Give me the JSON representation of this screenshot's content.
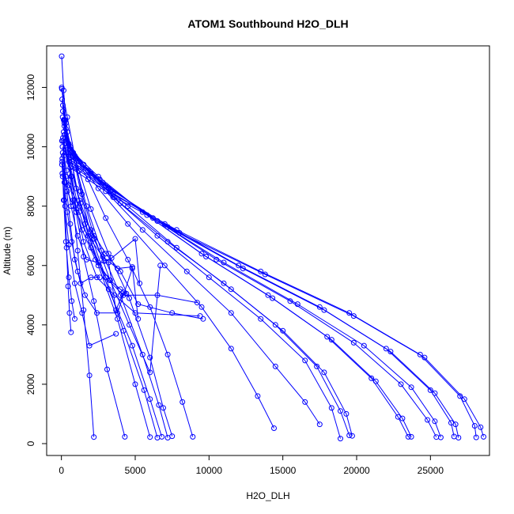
{
  "chart_data": {
    "type": "line",
    "title": "ATOM1 Southbound H2O_DLH",
    "xlabel": "H2O_DLH",
    "ylabel": "Altitude (m)",
    "xlim": [
      -1000,
      29000
    ],
    "ylim": [
      -400,
      13400
    ],
    "xticks": [
      0,
      5000,
      10000,
      15000,
      20000,
      25000
    ],
    "yticks": [
      0,
      2000,
      4000,
      6000,
      8000,
      10000,
      12000
    ],
    "grid": false,
    "series_color": "#0000ff",
    "marker": "open-circle",
    "series": [
      {
        "x": [
          20,
          150,
          300,
          500,
          800,
          1100,
          1500,
          1900,
          2200
        ],
        "y": [
          13050,
          11900,
          10800,
          9500,
          8000,
          6500,
          4500,
          2300,
          220
        ]
      },
      {
        "x": [
          50,
          200,
          400,
          650,
          1000,
          1500,
          2200,
          3100,
          4300
        ],
        "y": [
          11600,
          10900,
          10000,
          9000,
          7800,
          6300,
          4800,
          2500,
          230
        ]
      },
      {
        "x": [
          100,
          300,
          600,
          1000,
          1600,
          2500,
          3800,
          5000,
          6000
        ],
        "y": [
          11400,
          10600,
          9800,
          8600,
          7400,
          6000,
          4200,
          2000,
          220
        ]
      },
      {
        "x": [
          100,
          400,
          800,
          1300,
          2000,
          3000,
          4200,
          5600,
          6500
        ],
        "y": [
          11200,
          10500,
          9700,
          8500,
          7000,
          5600,
          3800,
          1800,
          200
        ]
      },
      {
        "x": [
          80,
          300,
          700,
          1200,
          2000,
          3200,
          4800,
          6000,
          6800
        ],
        "y": [
          11000,
          10200,
          9500,
          8200,
          6800,
          5200,
          3300,
          1500,
          230
        ]
      },
      {
        "x": [
          150,
          500,
          1000,
          1700,
          2700,
          4000,
          5500,
          6600,
          7200
        ],
        "y": [
          10900,
          10100,
          9300,
          8000,
          6500,
          5000,
          3000,
          1300,
          200
        ]
      },
      {
        "x": [
          200,
          600,
          1200,
          2000,
          3200,
          4600,
          6000,
          6900,
          7500
        ],
        "y": [
          10800,
          10000,
          9200,
          7900,
          6400,
          4900,
          2900,
          1200,
          250
        ]
      },
      {
        "x": [
          200,
          800,
          1800,
          3000,
          4500,
          6000,
          7200,
          8200,
          8900
        ],
        "y": [
          10700,
          9800,
          8900,
          7600,
          6200,
          4600,
          3000,
          1400,
          230
        ]
      },
      {
        "x": [
          150,
          1000,
          2500,
          4500,
          7000,
          9500,
          11500,
          13300,
          14400
        ],
        "y": [
          10500,
          9600,
          8600,
          7400,
          6000,
          4600,
          3200,
          1600,
          520
        ]
      },
      {
        "x": [
          200,
          1200,
          3000,
          5500,
          8500,
          11500,
          14500,
          16500,
          17500
        ],
        "y": [
          10400,
          9500,
          8500,
          7200,
          5800,
          4400,
          2600,
          1400,
          650
        ]
      },
      {
        "x": [
          250,
          1500,
          3500,
          6500,
          10000,
          13500,
          16500,
          18300,
          18900
        ],
        "y": [
          10300,
          9400,
          8300,
          7000,
          5600,
          4200,
          2800,
          1200,
          170
        ]
      },
      {
        "x": [
          300,
          1800,
          4000,
          7200,
          11000,
          14500,
          17300,
          18900,
          19500
        ],
        "y": [
          10200,
          9200,
          8100,
          6800,
          5400,
          4000,
          2600,
          1100,
          280
        ]
      },
      {
        "x": [
          300,
          2000,
          4500,
          7800,
          11500,
          15000,
          17800,
          19300,
          19700
        ],
        "y": [
          10100,
          9100,
          8000,
          6600,
          5200,
          3800,
          2400,
          1000,
          260
        ]
      },
      {
        "x": [
          400,
          2500,
          5500,
          9500,
          14000,
          18000,
          21000,
          22800,
          23500
        ],
        "y": [
          10000,
          9000,
          7800,
          6400,
          5000,
          3600,
          2200,
          900,
          230
        ]
      },
      {
        "x": [
          400,
          2600,
          5800,
          9800,
          14300,
          18300,
          21300,
          23100,
          23700
        ],
        "y": [
          9900,
          8900,
          7700,
          6300,
          4900,
          3500,
          2100,
          850,
          230
        ]
      },
      {
        "x": [
          450,
          2800,
          6200,
          10500,
          15500,
          19800,
          23000,
          24800,
          25400
        ],
        "y": [
          9800,
          8800,
          7600,
          6200,
          4800,
          3400,
          2000,
          800,
          220
        ]
      },
      {
        "x": [
          500,
          3000,
          6500,
          11000,
          16000,
          20500,
          23700,
          25300,
          25700
        ],
        "y": [
          9700,
          8700,
          7500,
          6100,
          4700,
          3300,
          1900,
          750,
          210
        ]
      },
      {
        "x": [
          500,
          3200,
          7000,
          12000,
          17500,
          22000,
          25000,
          26400,
          26600
        ],
        "y": [
          9600,
          8600,
          7400,
          6000,
          4600,
          3200,
          1800,
          700,
          240
        ]
      },
      {
        "x": [
          550,
          3300,
          7200,
          12300,
          17800,
          22300,
          25300,
          26700,
          26900
        ],
        "y": [
          9500,
          8500,
          7300,
          5900,
          4500,
          3100,
          1700,
          650,
          200
        ]
      },
      {
        "x": [
          600,
          3500,
          7800,
          13500,
          19500,
          24300,
          27000,
          28000,
          28100
        ],
        "y": [
          9400,
          8400,
          7200,
          5800,
          4400,
          3000,
          1600,
          600,
          210
        ]
      },
      {
        "x": [
          600,
          3600,
          8000,
          13800,
          19800,
          24600,
          27300,
          28400,
          28600
        ],
        "y": [
          9300,
          8300,
          7100,
          5700,
          4300,
          2900,
          1500,
          550,
          230
        ]
      },
      {
        "x": [
          20,
          400,
          900,
          1400,
          2200,
          3300,
          4600,
          6000,
          6700
        ],
        "y": [
          12000,
          11000,
          9700,
          8400,
          7000,
          5500,
          4000,
          2400,
          6000
        ]
      },
      {
        "x": [
          30,
          250,
          500,
          900,
          1500,
          2400,
          3600,
          5000,
          9400
        ],
        "y": [
          11950,
          10900,
          9600,
          8200,
          6800,
          5600,
          5000,
          4400,
          4300
        ]
      },
      {
        "x": [
          40,
          300,
          700,
          1200,
          2000,
          3000,
          4200,
          6500,
          9200
        ],
        "y": [
          10200,
          9800,
          9000,
          7800,
          6600,
          5600,
          5000,
          5000,
          4750
        ]
      },
      {
        "x": [
          60,
          500,
          1200,
          2000,
          3000,
          4000,
          5200,
          7500,
          9600
        ],
        "y": [
          9100,
          8700,
          8000,
          7200,
          6400,
          5800,
          4700,
          4400,
          4200
        ]
      },
      {
        "x": [
          80,
          400,
          1000,
          1800,
          2800,
          3800,
          4800,
          5200
        ],
        "y": [
          9000,
          8500,
          7800,
          7000,
          6300,
          5900,
          5950,
          4200
        ]
      },
      {
        "x": [
          120,
          300,
          600,
          900,
          1300,
          2000,
          2600
        ],
        "y": [
          10200,
          8800,
          7400,
          6200,
          5400,
          5600,
          5600
        ]
      },
      {
        "x": [
          40,
          200,
          500,
          900,
          1400,
          1900,
          3700
        ],
        "y": [
          9400,
          8200,
          6700,
          5400,
          4400,
          3300,
          3700
        ]
      },
      {
        "x": [
          50,
          150,
          300,
          500,
          700,
          900
        ],
        "y": [
          9500,
          8200,
          6800,
          5600,
          4800,
          4200
        ]
      },
      {
        "x": [
          150,
          250,
          350,
          450,
          550,
          650
        ],
        "y": [
          9700,
          8000,
          6600,
          5300,
          4400,
          3750
        ]
      },
      {
        "x": [
          60,
          200,
          400,
          700,
          1100,
          1600,
          2400,
          3800,
          4800
        ],
        "y": [
          9600,
          8800,
          7800,
          6800,
          5800,
          5000,
          4400,
          4400,
          5900
        ]
      },
      {
        "x": [
          70,
          350,
          800,
          1400,
          2300,
          3300,
          4000,
          4400
        ],
        "y": [
          10000,
          9200,
          8200,
          7200,
          6200,
          5500,
          5200,
          5050
        ]
      },
      {
        "x": [
          90,
          300,
          650,
          1100,
          1700,
          2500,
          3200,
          3700,
          4200
        ],
        "y": [
          9800,
          9000,
          8000,
          7000,
          6200,
          6100,
          6100,
          4500,
          5100
        ]
      },
      {
        "x": [
          100,
          600,
          1300,
          2200,
          2900,
          3400,
          5000,
          5300
        ],
        "y": [
          10300,
          9300,
          8100,
          6900,
          6150,
          6250,
          6900,
          5400
        ]
      }
    ]
  }
}
